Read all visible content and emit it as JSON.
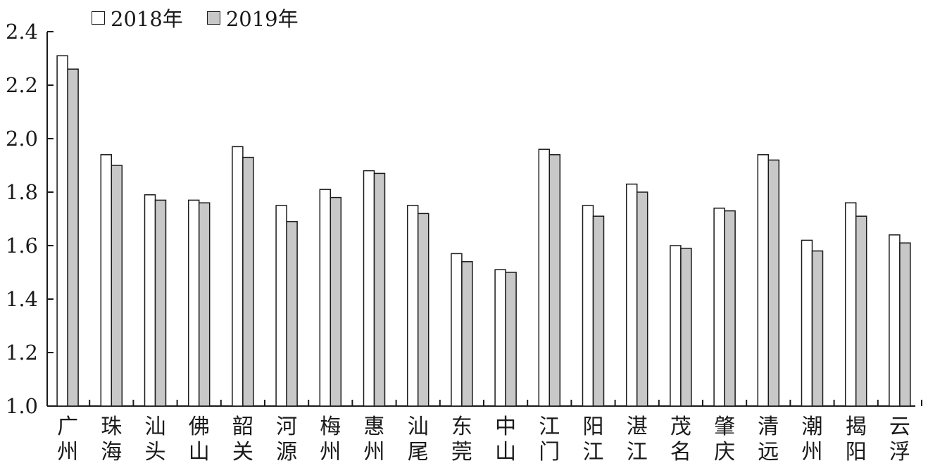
{
  "chart_data": {
    "type": "bar",
    "categories": [
      "广州",
      "珠海",
      "汕头",
      "佛山",
      "韶关",
      "河源",
      "梅州",
      "惠州",
      "汕尾",
      "东莞",
      "中山",
      "江门",
      "阳江",
      "湛江",
      "茂名",
      "肇庆",
      "清远",
      "潮州",
      "揭阳",
      "云浮"
    ],
    "series": [
      {
        "name": "2018年",
        "color": "#ffffff",
        "values": [
          2.31,
          1.94,
          1.79,
          1.77,
          1.97,
          1.75,
          1.81,
          1.88,
          1.75,
          1.57,
          1.51,
          1.96,
          1.75,
          1.83,
          1.6,
          1.74,
          1.94,
          1.62,
          1.76,
          1.64
        ]
      },
      {
        "name": "2019年",
        "color": "#c8c8c8",
        "values": [
          2.26,
          1.9,
          1.77,
          1.76,
          1.93,
          1.69,
          1.78,
          1.87,
          1.72,
          1.54,
          1.5,
          1.94,
          1.71,
          1.8,
          1.59,
          1.73,
          1.92,
          1.58,
          1.71,
          1.61
        ]
      }
    ],
    "yticks": [
      "1.0",
      "1.2",
      "1.4",
      "1.6",
      "1.8",
      "2.0",
      "2.2",
      "2.4"
    ],
    "ylim": [
      1.0,
      2.4
    ],
    "grid": false,
    "legend_position": "top-left",
    "title": "",
    "xlabel": "",
    "ylabel": ""
  }
}
